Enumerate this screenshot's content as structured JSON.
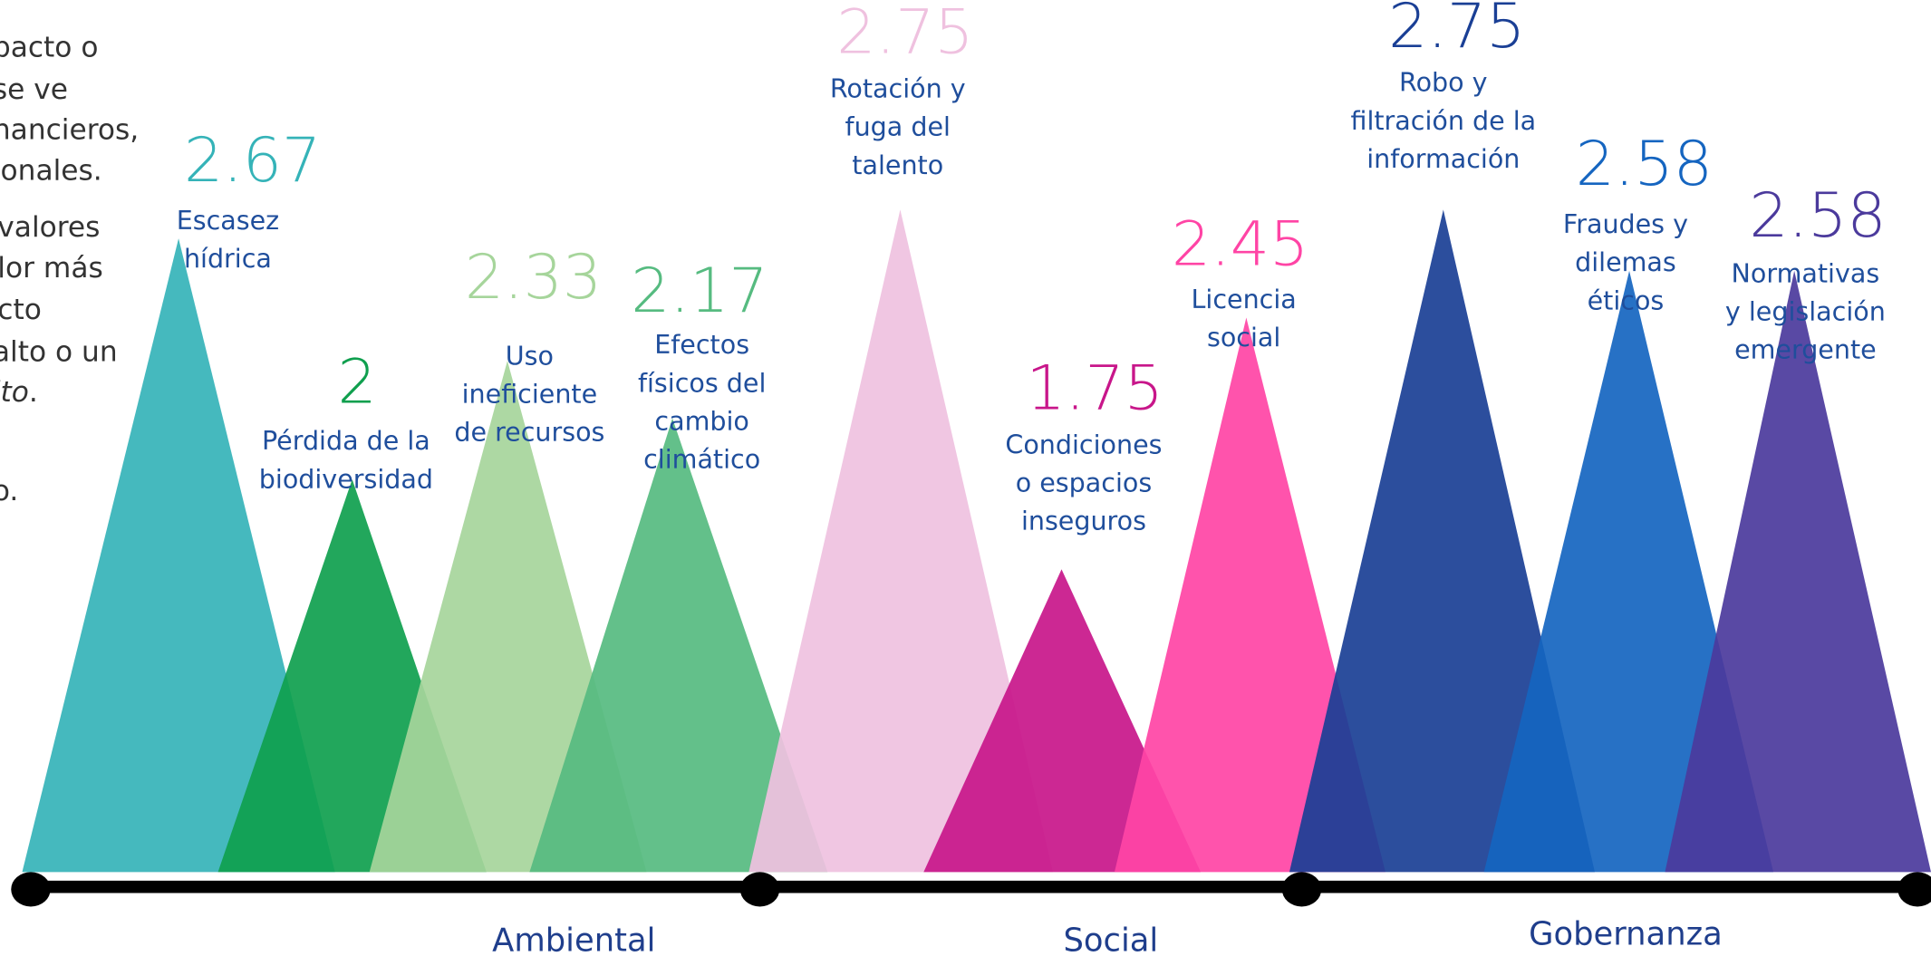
{
  "left_text": [
    [
      "pacto o"
    ],
    [
      "se ve"
    ],
    [
      "nancieros,"
    ],
    [
      "ionales."
    ],
    [
      "valores"
    ],
    [
      "lor más"
    ],
    [
      "cto"
    ],
    [
      "alto o un"
    ],
    [
      "lto",
      "."
    ],
    [
      "o."
    ]
  ],
  "chart_data": {
    "type": "triangle",
    "series": [
      {
        "name": [
          "Escasez",
          "hídrica"
        ],
        "value": 2.67,
        "color": "#35b3b8",
        "group": 0
      },
      {
        "name": [
          "Pérdida de la",
          "biodiversidad"
        ],
        "value": 2.0,
        "color": "#0f9f4e",
        "group": 0
      },
      {
        "name": [
          "Uso",
          "ineficiente",
          "de recursos"
        ],
        "value": 2.33,
        "color": "#a6d59b",
        "group": 0
      },
      {
        "name": [
          "Efectos",
          "físicos del",
          "cambio",
          "climático"
        ],
        "value": 2.17,
        "color": "#56bb80",
        "group": 0
      },
      {
        "name": [
          "Rotación y",
          "fuga del",
          "talento"
        ],
        "value": 2.75,
        "color": "#efc1df",
        "group": 1
      },
      {
        "name": [
          "Condiciones",
          "o espacios",
          "inseguros"
        ],
        "value": 1.75,
        "color": "#c8168a",
        "group": 1
      },
      {
        "name": [
          "Licencia",
          "social"
        ],
        "value": 2.45,
        "color": "#ff44a5",
        "group": 1
      },
      {
        "name": [
          "Robo y",
          "filtración de la",
          "información"
        ],
        "value": 2.75,
        "color": "#1a3f95",
        "group": 2
      },
      {
        "name": [
          "Fraudes y",
          "dilemas",
          "éticos"
        ],
        "value": 2.58,
        "color": "#1565c0",
        "group": 2
      },
      {
        "name": [
          "Normativas",
          "y legislación",
          "emergente"
        ],
        "value": 2.58,
        "color": "#4b3a9c",
        "group": 2
      }
    ],
    "groups": [
      "Ambiental",
      "Social",
      "Gobernanza"
    ]
  }
}
